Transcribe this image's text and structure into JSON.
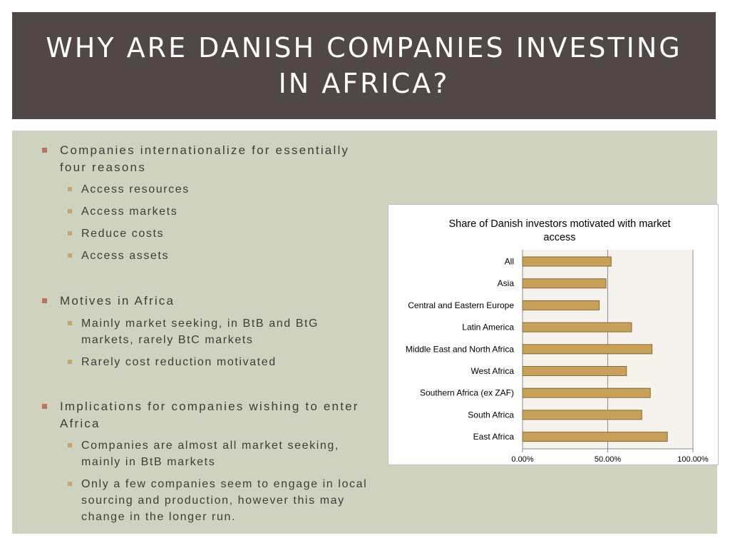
{
  "title": "WHY ARE DANISH COMPANIES INVESTING IN AFRICA?",
  "bullets": [
    {
      "text": "Companies internationalize for essentially four reasons",
      "sub": [
        "Access resources",
        "Access markets",
        "Reduce costs",
        "Access assets"
      ]
    },
    {
      "text": "Motives in Africa",
      "sub": [
        "Mainly market seeking, in BtB and BtG markets, rarely BtC markets",
        "Rarely cost reduction motivated"
      ]
    },
    {
      "text": "Implications for companies wishing to enter Africa",
      "sub": [
        "Companies are almost all market seeking, mainly in BtB markets",
        "Only a few companies seem to engage in local sourcing and production, however this may change in the longer run."
      ]
    }
  ],
  "colors": {
    "title_bg": "#514746",
    "content_bg": "#ced2bf",
    "bar_fill": "#c9a05a",
    "bar_stroke": "#8a6a34",
    "bullet_l1": "#c0725a",
    "bullet_l2": "#c9a462"
  },
  "chart_data": {
    "type": "bar",
    "orientation": "horizontal",
    "title": "Share of Danish investors motivated with market access",
    "categories": [
      "All",
      "Asia",
      "Central and Eastern Europe",
      "Latin America",
      "Middle East and North Africa",
      "West Africa",
      "Southern Africa (ex ZAF)",
      "South Africa",
      "East Africa"
    ],
    "values": [
      52,
      49,
      45,
      64,
      76,
      61,
      75,
      70,
      85
    ],
    "value_unit": "%",
    "xlim": [
      0,
      100
    ],
    "xticks": [
      "0.00%",
      "50.00%",
      "100.00%"
    ],
    "xlabel": "",
    "ylabel": "",
    "grid": "vertical",
    "legend": "none"
  }
}
